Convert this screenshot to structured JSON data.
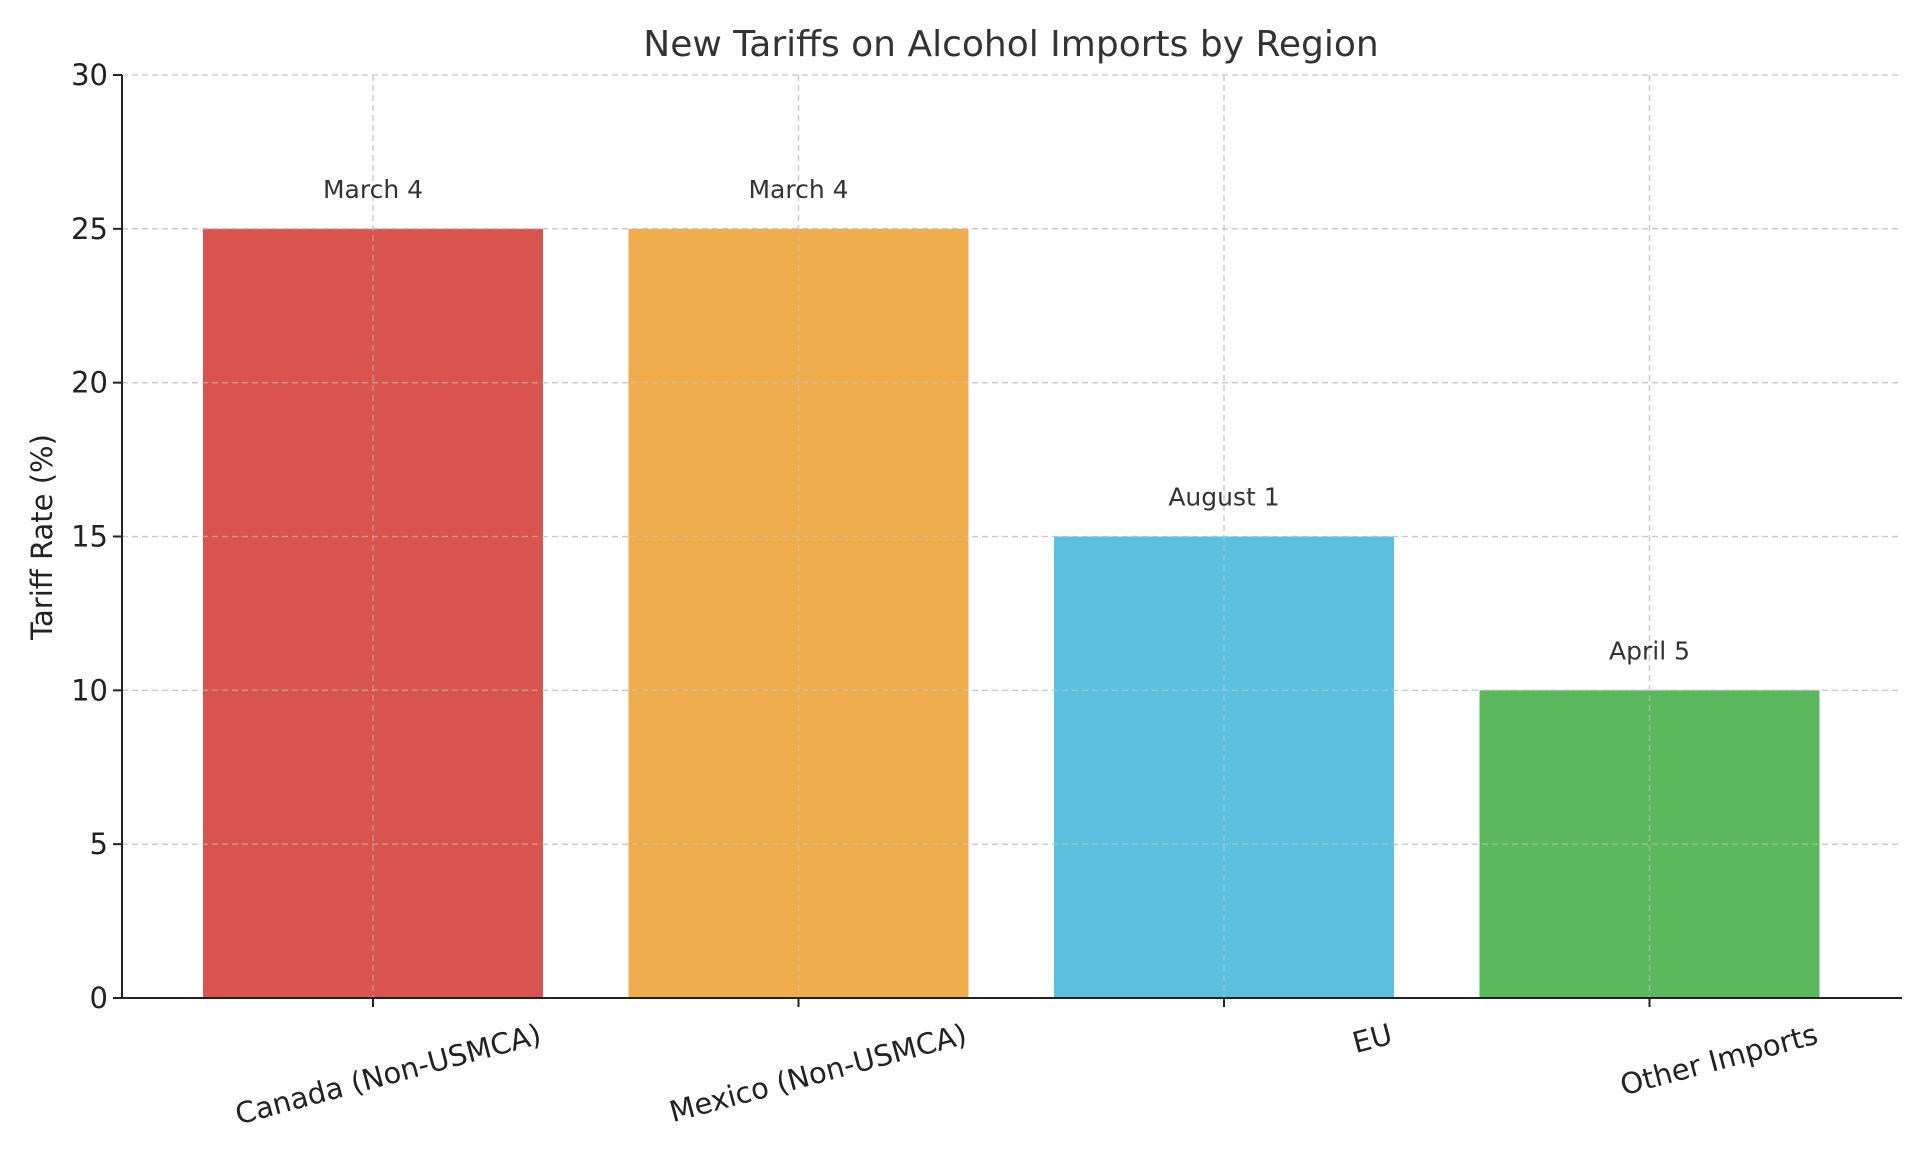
{
  "chart_data": {
    "type": "bar",
    "title": "New Tariffs on Alcohol Imports by Region",
    "xlabel": "",
    "ylabel": "Tariff Rate (%)",
    "categories": [
      "Canada (Non-USMCA)",
      "Mexico (Non-USMCA)",
      "EU",
      "Other Imports"
    ],
    "values": [
      25,
      25,
      15,
      10
    ],
    "bar_labels": [
      "March 4",
      "March 4",
      "August 1",
      "April 5"
    ],
    "colors": [
      "#d9534f",
      "#f0ad4e",
      "#5bc0de",
      "#5cb85c"
    ],
    "ylim": [
      0,
      30
    ],
    "yticks": [
      0,
      5,
      10,
      15,
      20,
      25,
      30
    ],
    "grid": true,
    "legend": "none"
  }
}
